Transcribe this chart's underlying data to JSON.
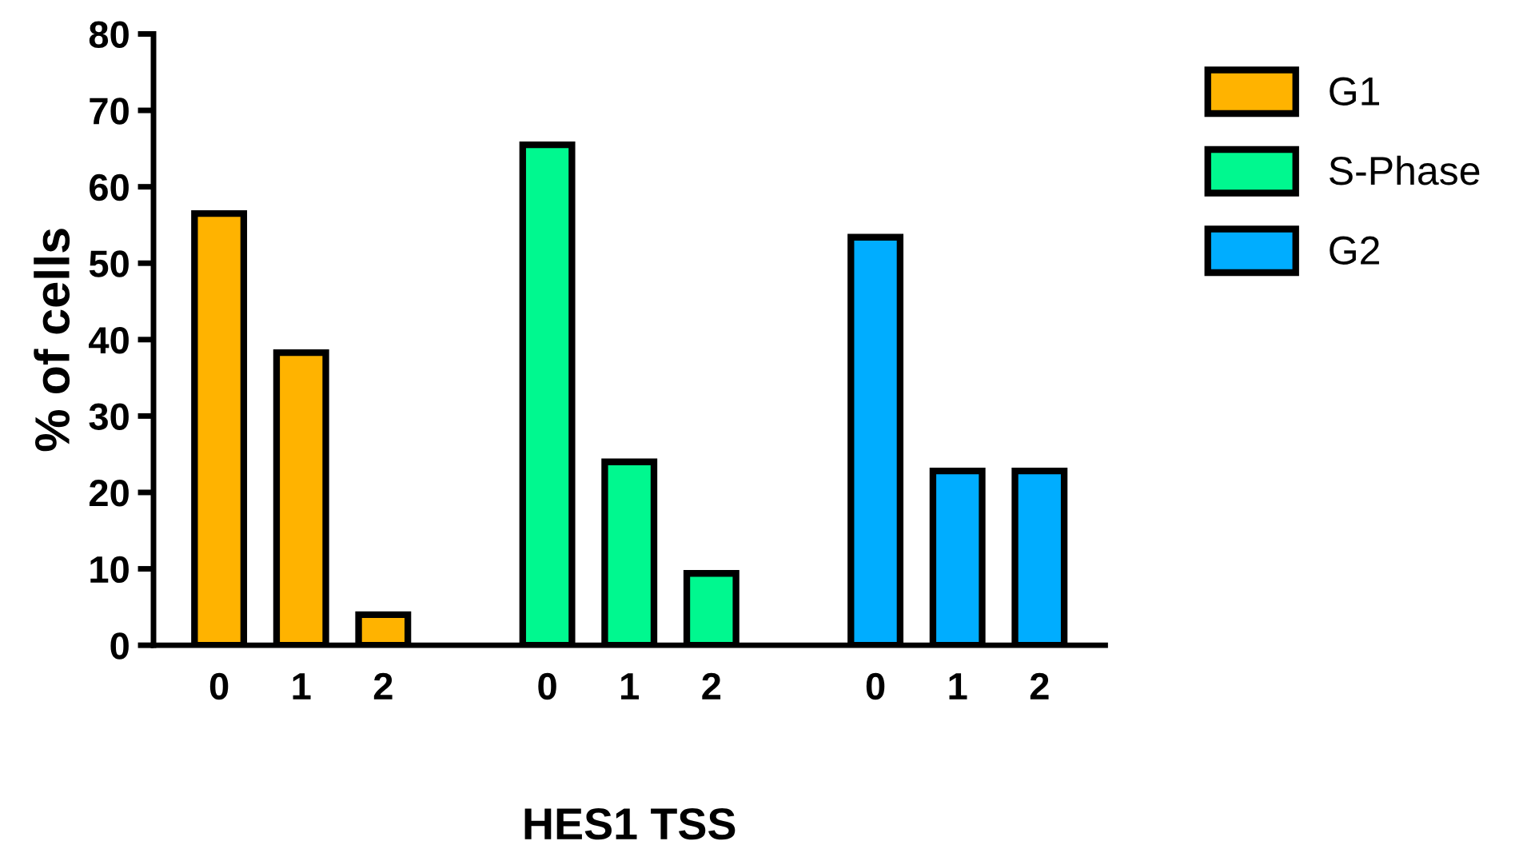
{
  "chart_data": {
    "type": "bar",
    "ylabel": "% of cells",
    "xlabel": "HES1 TSS",
    "categories": [
      "0",
      "1",
      "2",
      null,
      "0",
      "1",
      "2",
      null,
      "0",
      "1",
      "2"
    ],
    "series": [
      {
        "name": "G1",
        "color": "#ffb300",
        "values": [
          56.5,
          38.3,
          4,
          null,
          null,
          null,
          null,
          null,
          null,
          null,
          null
        ]
      },
      {
        "name": "S-Phase",
        "color": "#00f88f",
        "values": [
          null,
          null,
          null,
          null,
          65.5,
          24,
          9.4,
          null,
          null,
          null,
          null
        ]
      },
      {
        "name": "G2",
        "color": "#00adff",
        "values": [
          null,
          null,
          null,
          null,
          null,
          null,
          null,
          null,
          53.4,
          22.8,
          22.8
        ]
      }
    ],
    "ylim": [
      0,
      80
    ],
    "yticks": [
      0,
      10,
      20,
      30,
      40,
      50,
      60,
      70,
      80
    ],
    "grid": false,
    "legend": "top right"
  }
}
